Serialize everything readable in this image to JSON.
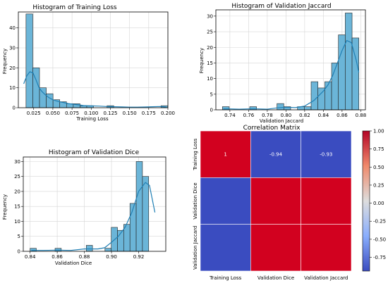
{
  "colors": {
    "bar_fill": "#6bb5d8",
    "bar_edge": "#222222",
    "kde_line": "#1f7fb4",
    "grid": "#d6d6d6",
    "heat_pos": "#d2011f",
    "heat_neg": "#3a4cc0"
  },
  "chart_data": [
    {
      "type": "bar",
      "subtype": "histogram",
      "title": "Histogram of Training Loss",
      "xlabel": "Training Loss",
      "ylabel": "Frequency",
      "xlim": [
        0.005,
        0.2
      ],
      "ylim": [
        0,
        48
      ],
      "grid": true,
      "xticks": [
        "0.025",
        "0.050",
        "0.075",
        "0.100",
        "0.125",
        "0.150",
        "0.175",
        "0.200"
      ],
      "xtick_values": [
        0.025,
        0.05,
        0.075,
        0.1,
        0.125,
        0.15,
        0.175,
        0.2
      ],
      "yticks": [
        "0",
        "10",
        "20",
        "30",
        "40"
      ],
      "ytick_values": [
        0,
        10,
        20,
        30,
        40
      ],
      "bin_edges": [
        0.015,
        0.0238,
        0.0326,
        0.0414,
        0.0502,
        0.059,
        0.0678,
        0.0766,
        0.0854,
        0.0942,
        0.103,
        0.1118,
        0.1206,
        0.1294,
        0.1382,
        0.147,
        0.1558,
        0.1646,
        0.1734,
        0.1822,
        0.191,
        0.1998
      ],
      "values": [
        47,
        20,
        10,
        7,
        4,
        3,
        2,
        2,
        1,
        1,
        0,
        0,
        1,
        0,
        0,
        0,
        0,
        0,
        0,
        0,
        1
      ],
      "kde": {
        "x": [
          0.012,
          0.016,
          0.02,
          0.024,
          0.028,
          0.032,
          0.036,
          0.04,
          0.045,
          0.05,
          0.055,
          0.06,
          0.065,
          0.07,
          0.08,
          0.09,
          0.1,
          0.11,
          0.12,
          0.13,
          0.14,
          0.15,
          0.16,
          0.17,
          0.18,
          0.19,
          0.198
        ],
        "y": [
          12,
          16,
          18,
          17.5,
          14,
          10,
          8,
          6.5,
          5,
          4,
          3.4,
          2.9,
          2.5,
          2.1,
          1.6,
          1.1,
          0.9,
          0.8,
          0.6,
          0.5,
          0.4,
          0.3,
          0.3,
          0.35,
          0.5,
          0.6,
          0.3
        ]
      }
    },
    {
      "type": "bar",
      "subtype": "histogram",
      "title": "Histogram of Validation Jaccard",
      "xlabel": "Validation Jaccard",
      "ylabel": "Frequency",
      "xlim": [
        0.725,
        0.885
      ],
      "ylim": [
        0,
        32
      ],
      "grid": true,
      "xticks": [
        "0.74",
        "0.76",
        "0.78",
        "0.80",
        "0.82",
        "0.84",
        "0.86",
        "0.88"
      ],
      "xtick_values": [
        0.74,
        0.76,
        0.78,
        0.8,
        0.82,
        0.84,
        0.86,
        0.88
      ],
      "yticks": [
        "0",
        "5",
        "10",
        "15",
        "20",
        "25",
        "30"
      ],
      "ytick_values": [
        0,
        5,
        10,
        15,
        20,
        25,
        30
      ],
      "bin_edges": [
        0.732,
        0.7393,
        0.7466,
        0.7539,
        0.7612,
        0.7685,
        0.7758,
        0.7831,
        0.7904,
        0.7977,
        0.805,
        0.8123,
        0.8196,
        0.8269,
        0.8342,
        0.8415,
        0.8488,
        0.8561,
        0.8634,
        0.8707,
        0.878
      ],
      "values": [
        1,
        0,
        0,
        0,
        1,
        0,
        0,
        0,
        2,
        1,
        0,
        1,
        1,
        9,
        7,
        9,
        15,
        24,
        31,
        23
      ],
      "kde": {
        "x": [
          0.733,
          0.74,
          0.75,
          0.76,
          0.77,
          0.78,
          0.79,
          0.8,
          0.81,
          0.82,
          0.83,
          0.84,
          0.845,
          0.85,
          0.855,
          0.86,
          0.865,
          0.87,
          0.875,
          0.878
        ],
        "y": [
          0.3,
          0.3,
          0.2,
          0.3,
          0.3,
          0.2,
          0.6,
          0.8,
          0.7,
          1.2,
          3,
          6,
          8,
          11,
          15,
          19,
          22.2,
          21.5,
          16,
          12
        ]
      }
    },
    {
      "type": "bar",
      "subtype": "histogram",
      "title": "Histogram of Validation Dice",
      "xlabel": "Validation Dice",
      "ylabel": "Frequency",
      "xlim": [
        0.835,
        0.94
      ],
      "ylim": [
        0,
        31.5
      ],
      "grid": true,
      "xticks": [
        "0.84",
        "0.86",
        "0.88",
        "0.90",
        "0.92"
      ],
      "xtick_values": [
        0.84,
        0.86,
        0.88,
        0.9,
        0.92
      ],
      "yticks": [
        "0",
        "5",
        "10",
        "15",
        "20",
        "25",
        "30"
      ],
      "ytick_values": [
        0,
        5,
        10,
        15,
        20,
        25,
        30
      ],
      "bin_edges": [
        0.84,
        0.8446,
        0.8492,
        0.8538,
        0.8584,
        0.863,
        0.8676,
        0.8722,
        0.8768,
        0.8814,
        0.886,
        0.8906,
        0.8952,
        0.8998,
        0.9044,
        0.909,
        0.9136,
        0.9182,
        0.9228,
        0.9274,
        0.932
      ],
      "values": [
        1,
        0,
        0,
        0,
        1,
        0,
        0,
        0,
        0,
        2,
        0,
        0,
        1,
        8,
        7,
        9,
        16,
        30,
        25,
        0
      ],
      "kde": {
        "x": [
          0.841,
          0.85,
          0.86,
          0.87,
          0.88,
          0.89,
          0.895,
          0.9,
          0.905,
          0.91,
          0.915,
          0.92,
          0.925,
          0.928,
          0.932
        ],
        "y": [
          0.3,
          0.3,
          0.4,
          0.3,
          0.8,
          0.8,
          1.2,
          3,
          5,
          8,
          13,
          20,
          23,
          22,
          13
        ]
      }
    },
    {
      "type": "heatmap",
      "title": "Correlation Matrix",
      "labels": [
        "Training Loss",
        "Validation Dice",
        "Validation Jaccard"
      ],
      "matrix": [
        [
          1,
          -0.94,
          -0.93
        ],
        [
          -0.94,
          1,
          1
        ],
        [
          -0.93,
          1,
          1
        ]
      ],
      "annotations": [
        [
          "1",
          "-0.94",
          "-0.93"
        ],
        [
          "",
          "",
          ""
        ],
        [
          "",
          "",
          ""
        ]
      ],
      "colorbar": {
        "min": -0.94,
        "max": 1,
        "ticks": [
          "1.00",
          "0.75",
          "0.50",
          "0.25",
          "0.00",
          "-0.25",
          "-0.50",
          "-0.75"
        ],
        "tick_values": [
          1,
          0.75,
          0.5,
          0.25,
          0,
          -0.25,
          -0.5,
          -0.75
        ]
      }
    }
  ]
}
